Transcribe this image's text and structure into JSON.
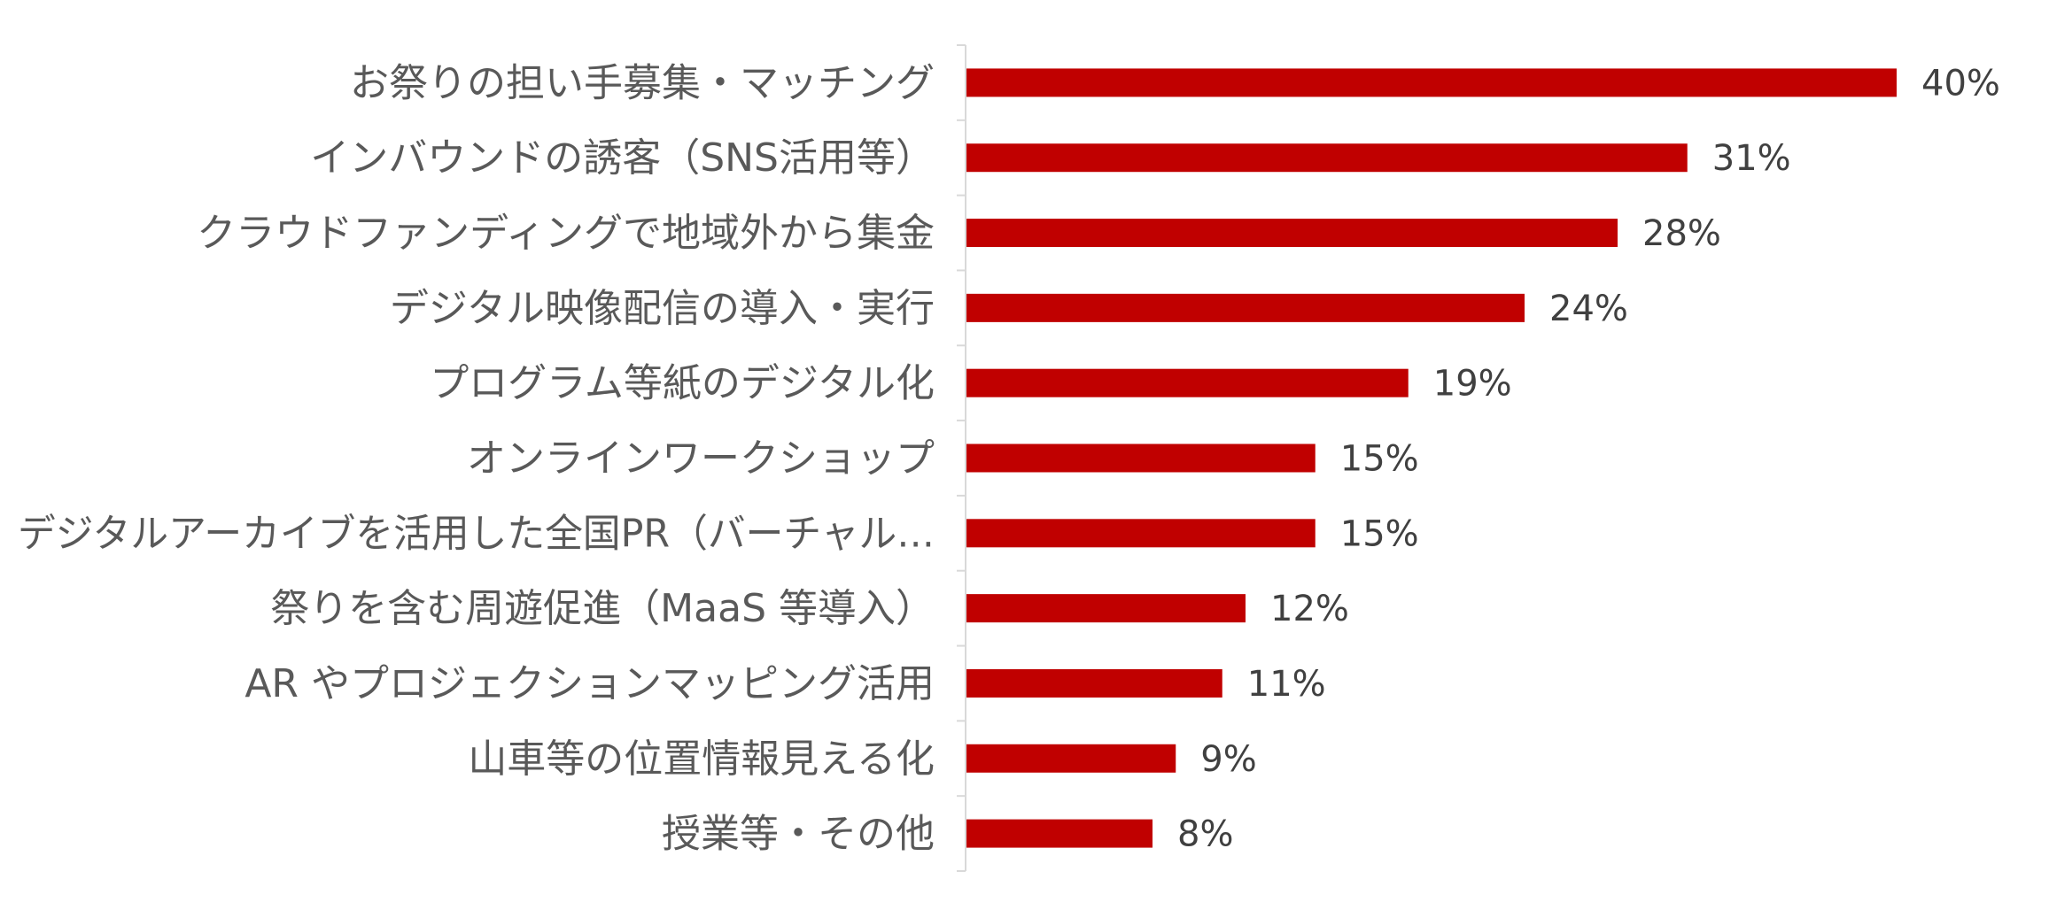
{
  "chart_data": {
    "type": "bar",
    "orientation": "horizontal",
    "title": "",
    "xlabel": "",
    "ylabel": "",
    "categories": [
      "お祭りの担い手募集・マッチング",
      "インバウンドの誘客（SNS活用等）",
      "クラウドファンディングで地域外から集金",
      "デジタル映像配信の導入・実行",
      "プログラム等紙のデジタル化",
      "オンラインワークショップ",
      "デジタルアーカイブを活用した全国PR（バーチャル…",
      "祭りを含む周遊促進（MaaS 等導入）",
      "AR やプロジェクションマッピング活用",
      "山車等の位置情報見える化",
      "授業等・その他"
    ],
    "values": [
      40,
      31,
      28,
      24,
      19,
      15,
      15,
      12,
      11,
      9,
      8
    ],
    "data_labels": [
      "40%",
      "31%",
      "28%",
      "24%",
      "19%",
      "15%",
      "15%",
      "12%",
      "11%",
      "9%",
      "8%"
    ],
    "value_unit": "%",
    "xlim": [
      0,
      40
    ],
    "grid": false,
    "legend": "none",
    "bar_color": "#C00000",
    "axis_color": "#D9D9D9",
    "label_color": "#595959",
    "value_label_color": "#404040"
  }
}
